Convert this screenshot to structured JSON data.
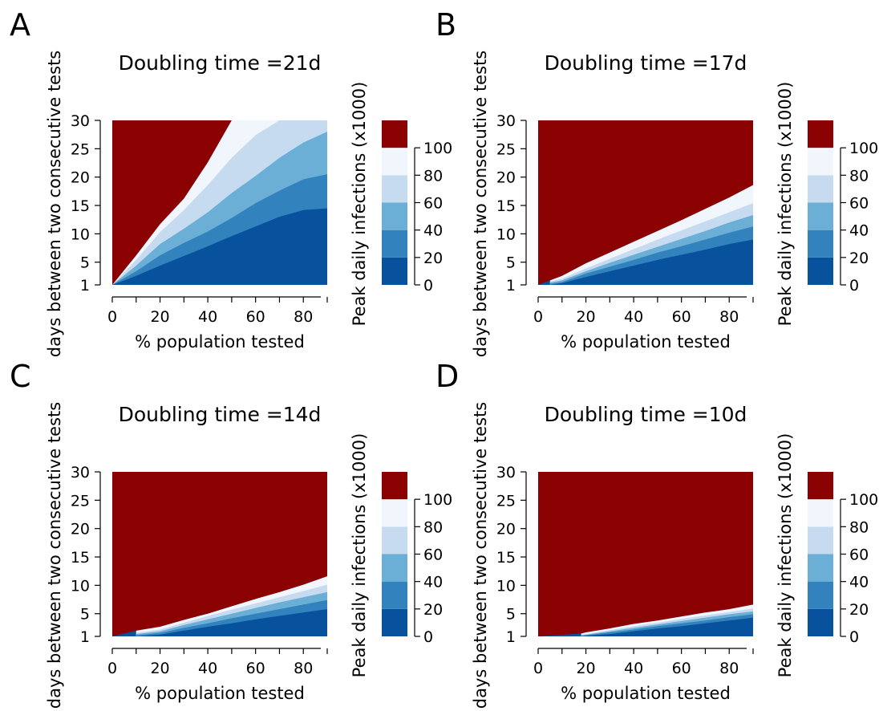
{
  "colorbar": {
    "label": "Peak daily infections (x1000)",
    "ticks": [
      0,
      20,
      40,
      60,
      80,
      100
    ],
    "bins": [
      {
        "from": 0,
        "to": 20,
        "color": "#08519c"
      },
      {
        "from": 20,
        "to": 40,
        "color": "#3182bd"
      },
      {
        "from": 40,
        "to": 60,
        "color": "#6baed6"
      },
      {
        "from": 60,
        "to": 80,
        "color": "#c6dbef"
      },
      {
        "from": 80,
        "to": 100,
        "color": "#f1f5fc"
      },
      {
        "from": 100,
        "to": 120,
        "color": "#8b0000"
      }
    ]
  },
  "chart_data": [
    {
      "panel": "A",
      "type": "heatmap",
      "title": "Doubling time =21d",
      "xlabel": "% population tested",
      "ylabel": "days between two consecutive tests",
      "xlim": [
        0,
        90
      ],
      "ylim": [
        1,
        30
      ],
      "xticks": [
        0,
        20,
        40,
        60,
        80
      ],
      "yticks": [
        1,
        5,
        10,
        15,
        20,
        25,
        30
      ],
      "contour_boundaries_days_vs_percent": {
        "x": [
          0,
          10,
          20,
          30,
          40,
          50,
          60,
          70,
          80,
          90
        ],
        "peak_0_20k": [
          1,
          2.6,
          4.4,
          6.1,
          7.8,
          9.6,
          11.3,
          13,
          14.2,
          14.5
        ],
        "peak_20_40k": [
          1,
          3.4,
          6.2,
          8.4,
          10.4,
          12.8,
          15.4,
          17.6,
          19.6,
          20.5
        ],
        "peak_40_60k": [
          1,
          4.4,
          8.2,
          10.9,
          13.8,
          17.2,
          20.2,
          23.4,
          26.1,
          28
        ],
        "peak_60_80k": [
          1,
          5.4,
          10.3,
          14.2,
          18.6,
          23.4,
          27.4,
          30,
          30,
          30
        ],
        "peak_above_100k": [
          1,
          6.2,
          11.7,
          16.2,
          22.6,
          30,
          30,
          30,
          30,
          30
        ]
      }
    },
    {
      "panel": "B",
      "type": "heatmap",
      "title": "Doubling time =17d",
      "xlabel": "% population tested",
      "ylabel": "days between two consecutive tests",
      "xlim": [
        0,
        90
      ],
      "ylim": [
        1,
        30
      ],
      "xticks": [
        0,
        20,
        40,
        60,
        80
      ],
      "yticks": [
        1,
        5,
        10,
        15,
        20,
        25,
        30
      ],
      "contour_boundaries_days_vs_percent": {
        "x": [
          5,
          10,
          20,
          30,
          40,
          50,
          60,
          70,
          80,
          90
        ],
        "peak_0_20k": [
          1,
          1.3,
          2.4,
          3.4,
          4.4,
          5.4,
          6.3,
          7.2,
          8.2,
          9
        ],
        "peak_20_40k": [
          1.2,
          1.5,
          3,
          4.2,
          5.4,
          6.7,
          7.8,
          9,
          10.2,
          11.3
        ],
        "peak_40_60k": [
          1.4,
          1.8,
          3.4,
          4.9,
          6.3,
          7.7,
          9.1,
          10.5,
          12,
          13.3
        ],
        "peak_60_80k": [
          1.6,
          2.1,
          3.9,
          5.6,
          7.3,
          9,
          10.6,
          12.2,
          13.8,
          15.4
        ],
        "peak_above_100k": [
          1.8,
          2.6,
          4.8,
          6.7,
          8.6,
          10.5,
          12.4,
          14.4,
          16.4,
          18.6
        ]
      }
    },
    {
      "panel": "C",
      "type": "heatmap",
      "title": "Doubling time =14d",
      "xlabel": "% population tested",
      "ylabel": "days between two consecutive tests",
      "xlim": [
        0,
        90
      ],
      "ylim": [
        1,
        30
      ],
      "xticks": [
        0,
        20,
        40,
        60,
        80
      ],
      "yticks": [
        1,
        5,
        10,
        15,
        20,
        25,
        30
      ],
      "contour_boundaries_days_vs_percent": {
        "x": [
          10,
          20,
          30,
          40,
          50,
          60,
          70,
          80,
          90
        ],
        "peak_0_20k": [
          1,
          1.3,
          2,
          2.7,
          3.3,
          4,
          4.6,
          5.2,
          5.8
        ],
        "peak_20_40k": [
          1.2,
          1.6,
          2.5,
          3.3,
          4.2,
          5,
          5.8,
          6.6,
          7.4
        ],
        "peak_40_60k": [
          1.4,
          1.9,
          3,
          4,
          5,
          6,
          7,
          7.9,
          8.8
        ],
        "peak_60_80k": [
          1.6,
          2.2,
          3.4,
          4.6,
          5.7,
          6.8,
          7.9,
          9,
          10.1
        ],
        "peak_above_100k": [
          2,
          2.7,
          3.9,
          5,
          6.3,
          7.6,
          8.8,
          10.1,
          11.6
        ]
      }
    },
    {
      "panel": "D",
      "type": "heatmap",
      "title": "Doubling time =10d",
      "xlabel": "% population tested",
      "ylabel": "days between two consecutive tests",
      "xlim": [
        0,
        90
      ],
      "ylim": [
        1,
        30
      ],
      "xticks": [
        0,
        20,
        40,
        60,
        80
      ],
      "yticks": [
        1,
        5,
        10,
        15,
        20,
        25,
        30
      ],
      "contour_boundaries_days_vs_percent": {
        "x": [
          18,
          20,
          30,
          40,
          50,
          60,
          70,
          80,
          90
        ],
        "peak_0_20k": [
          1,
          1.1,
          1.4,
          1.9,
          2.4,
          2.8,
          3.3,
          3.8,
          4.3
        ],
        "peak_20_40k": [
          1.1,
          1.2,
          1.7,
          2.2,
          2.8,
          3.3,
          3.8,
          4.4,
          4.9
        ],
        "peak_40_60k": [
          1.2,
          1.3,
          1.9,
          2.5,
          3.1,
          3.7,
          4.3,
          4.9,
          5.4
        ],
        "peak_60_80k": [
          1.3,
          1.4,
          2.1,
          2.8,
          3.4,
          4.1,
          4.7,
          5.3,
          5.9
        ],
        "peak_above_100k": [
          1.5,
          1.7,
          2.4,
          3.2,
          3.8,
          4.5,
          5.2,
          5.8,
          6.6
        ]
      }
    }
  ]
}
